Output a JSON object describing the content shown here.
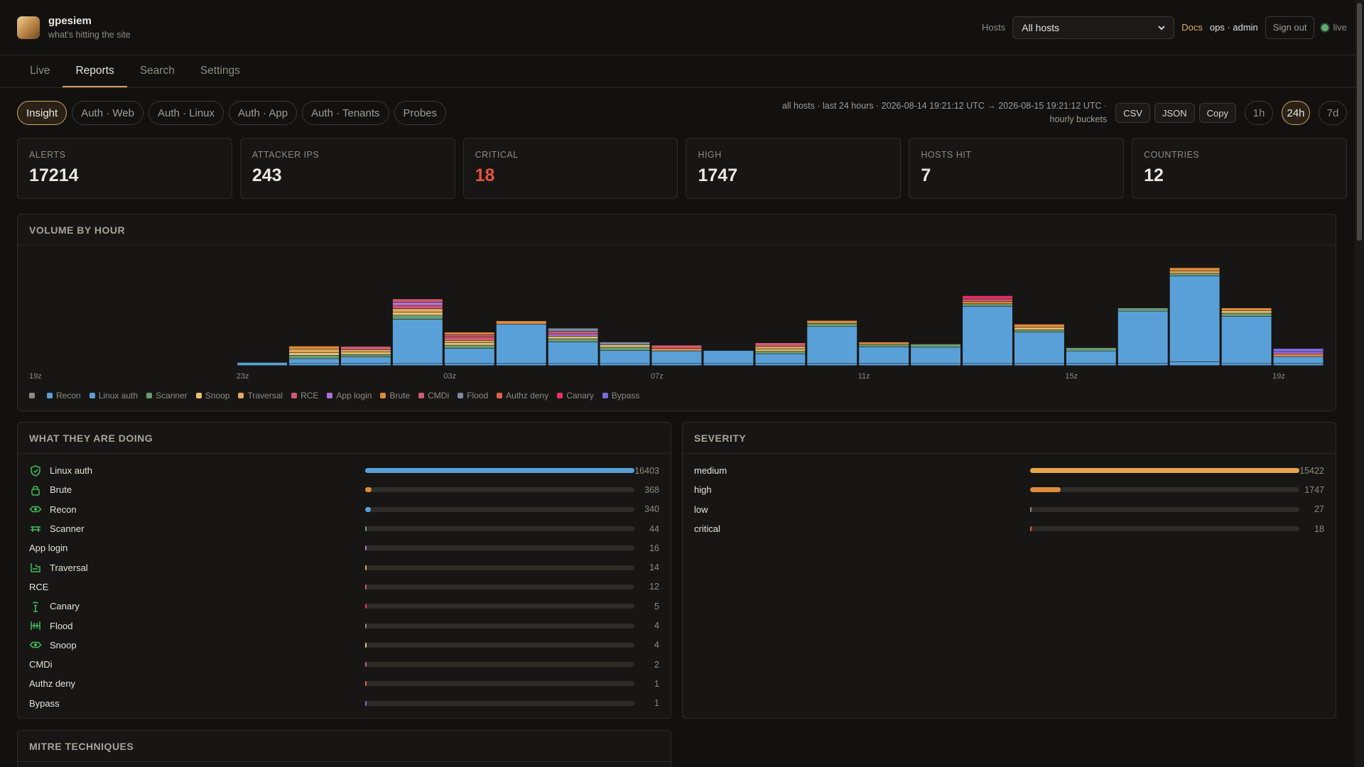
{
  "app": {
    "name": "gpesiem",
    "tagline": "what's hitting the site"
  },
  "header": {
    "hosts_label": "Hosts",
    "hosts_value": "All hosts",
    "docs": "Docs",
    "user": "ops · admin",
    "sign_out": "Sign out",
    "live": "live"
  },
  "tabs": [
    {
      "label": "Live"
    },
    {
      "label": "Reports"
    },
    {
      "label": "Search"
    },
    {
      "label": "Settings"
    }
  ],
  "filters": [
    {
      "label": "Insight"
    },
    {
      "label": "Auth · Web"
    },
    {
      "label": "Auth · Linux"
    },
    {
      "label": "Auth · App"
    },
    {
      "label": "Auth · Tenants"
    },
    {
      "label": "Probes"
    }
  ],
  "range": {
    "line1": "all hosts · last 24 hours · 2026-08-14 19:21:12 UTC → 2026-08-15 19:21:12 UTC ·",
    "line2": "hourly buckets"
  },
  "export": {
    "csv": "CSV",
    "json": "JSON",
    "copy": "Copy"
  },
  "ranges": [
    {
      "label": "1h"
    },
    {
      "label": "24h"
    },
    {
      "label": "7d"
    }
  ],
  "stats": [
    {
      "label": "ALERTS",
      "value": "17214"
    },
    {
      "label": "ATTACKER IPS",
      "value": "243"
    },
    {
      "label": "CRITICAL",
      "value": "18"
    },
    {
      "label": "HIGH",
      "value": "1747"
    },
    {
      "label": "HOSTS HIT",
      "value": "7"
    },
    {
      "label": "COUNTRIES",
      "value": "12"
    }
  ],
  "volume": {
    "title": "VOLUME BY HOUR"
  },
  "colors": {
    "unknown": "#8e8a82",
    "recon": "#5aa0d8",
    "linux_auth": "#5aa0d8",
    "scanner": "#6a9c72",
    "snoop": "#e8c070",
    "traversal": "#e0a860",
    "rce": "#d05a70",
    "app_login": "#b070d8",
    "brute": "#e08a3a",
    "cmdi": "#d05a70",
    "flood": "#7a8aa0",
    "authz_deny": "#e0604a",
    "canary": "#e8306a",
    "bypass": "#7a6ae0"
  },
  "chart_data": {
    "type": "bar",
    "stacked": true,
    "title": "VOLUME BY HOUR",
    "x_tick_labels": [
      "19z",
      "23z",
      "03z",
      "07z",
      "11z",
      "15z",
      "19z"
    ],
    "legend": [
      "",
      "Recon",
      "Linux auth",
      "Scanner",
      "Snoop",
      "Traversal",
      "RCE",
      "App login",
      "Brute",
      "CMDi",
      "Flood",
      "Authz deny",
      "Canary",
      "Bypass"
    ],
    "legend_keys": [
      "unknown",
      "recon",
      "linux_auth",
      "scanner",
      "snoop",
      "traversal",
      "rce",
      "app_login",
      "brute",
      "cmdi",
      "flood",
      "authz_deny",
      "canary",
      "bypass"
    ],
    "ylim": [
      0,
      1400
    ],
    "buckets": [
      {
        "hour": "19z",
        "segments": []
      },
      {
        "hour": "20z",
        "segments": []
      },
      {
        "hour": "21z",
        "segments": []
      },
      {
        "hour": "22z",
        "segments": []
      },
      {
        "hour": "23z",
        "segments": [
          {
            "key": "linux_auth",
            "v": 38
          }
        ]
      },
      {
        "hour": "00z",
        "segments": [
          {
            "key": "recon",
            "v": 25
          },
          {
            "key": "linux_auth",
            "v": 60
          },
          {
            "key": "scanner",
            "v": 40
          },
          {
            "key": "snoop",
            "v": 35
          },
          {
            "key": "traversal",
            "v": 40
          },
          {
            "key": "brute",
            "v": 40
          }
        ]
      },
      {
        "hour": "01z",
        "segments": [
          {
            "key": "recon",
            "v": 25
          },
          {
            "key": "linux_auth",
            "v": 80
          },
          {
            "key": "scanner",
            "v": 30
          },
          {
            "key": "snoop",
            "v": 30
          },
          {
            "key": "traversal",
            "v": 30
          },
          {
            "key": "rce",
            "v": 40
          }
        ]
      },
      {
        "hour": "02z",
        "segments": [
          {
            "key": "recon",
            "v": 25
          },
          {
            "key": "linux_auth",
            "v": 545
          },
          {
            "key": "scanner",
            "v": 50
          },
          {
            "key": "snoop",
            "v": 40
          },
          {
            "key": "traversal",
            "v": 40
          },
          {
            "key": "rce",
            "v": 40
          },
          {
            "key": "app_login",
            "v": 40
          },
          {
            "key": "cmdi",
            "v": 40
          }
        ]
      },
      {
        "hour": "03z",
        "segments": [
          {
            "key": "recon",
            "v": 25
          },
          {
            "key": "linux_auth",
            "v": 185
          },
          {
            "key": "scanner",
            "v": 40
          },
          {
            "key": "snoop",
            "v": 30
          },
          {
            "key": "traversal",
            "v": 30
          },
          {
            "key": "rce",
            "v": 40
          },
          {
            "key": "cmdi",
            "v": 30
          },
          {
            "key": "brute",
            "v": 30
          }
        ]
      },
      {
        "hour": "04z",
        "segments": [
          {
            "key": "recon",
            "v": 25
          },
          {
            "key": "linux_auth",
            "v": 485
          },
          {
            "key": "brute",
            "v": 40
          }
        ]
      },
      {
        "hour": "05z",
        "segments": [
          {
            "key": "recon",
            "v": 25
          },
          {
            "key": "linux_auth",
            "v": 265
          },
          {
            "key": "scanner",
            "v": 40
          },
          {
            "key": "snoop",
            "v": 30
          },
          {
            "key": "app_login",
            "v": 30
          },
          {
            "key": "rce",
            "v": 30
          },
          {
            "key": "flood",
            "v": 40
          }
        ]
      },
      {
        "hour": "06z",
        "segments": [
          {
            "key": "recon",
            "v": 25
          },
          {
            "key": "linux_auth",
            "v": 160
          },
          {
            "key": "scanner",
            "v": 40
          },
          {
            "key": "snoop",
            "v": 30
          },
          {
            "key": "flood",
            "v": 35
          }
        ]
      },
      {
        "hour": "07z",
        "segments": [
          {
            "key": "recon",
            "v": 25
          },
          {
            "key": "linux_auth",
            "v": 155
          },
          {
            "key": "brute",
            "v": 30
          },
          {
            "key": "rce",
            "v": 40
          }
        ]
      },
      {
        "hour": "08z",
        "segments": [
          {
            "key": "recon",
            "v": 25
          },
          {
            "key": "linux_auth",
            "v": 160
          }
        ]
      },
      {
        "hour": "09z",
        "segments": [
          {
            "key": "recon",
            "v": 25
          },
          {
            "key": "linux_auth",
            "v": 120
          },
          {
            "key": "scanner",
            "v": 30
          },
          {
            "key": "snoop",
            "v": 30
          },
          {
            "key": "traversal",
            "v": 30
          },
          {
            "key": "rce",
            "v": 45
          }
        ]
      },
      {
        "hour": "10z",
        "segments": [
          {
            "key": "recon",
            "v": 25
          },
          {
            "key": "linux_auth",
            "v": 455
          },
          {
            "key": "scanner",
            "v": 40
          },
          {
            "key": "brute",
            "v": 35
          }
        ]
      },
      {
        "hour": "11z",
        "segments": [
          {
            "key": "recon",
            "v": 25
          },
          {
            "key": "linux_auth",
            "v": 205
          },
          {
            "key": "scanner",
            "v": 30
          },
          {
            "key": "brute",
            "v": 30
          }
        ]
      },
      {
        "hour": "12z",
        "segments": [
          {
            "key": "recon",
            "v": 25
          },
          {
            "key": "linux_auth",
            "v": 200
          },
          {
            "key": "scanner",
            "v": 40
          }
        ]
      },
      {
        "hour": "13z",
        "segments": [
          {
            "key": "recon",
            "v": 25
          },
          {
            "key": "linux_auth",
            "v": 705
          },
          {
            "key": "scanner",
            "v": 30
          },
          {
            "key": "brute",
            "v": 30
          },
          {
            "key": "rce",
            "v": 30
          },
          {
            "key": "canary",
            "v": 40
          }
        ]
      },
      {
        "hour": "14z",
        "segments": [
          {
            "key": "recon",
            "v": 25
          },
          {
            "key": "linux_auth",
            "v": 385
          },
          {
            "key": "scanner",
            "v": 30
          },
          {
            "key": "snoop",
            "v": 30
          },
          {
            "key": "brute",
            "v": 40
          }
        ]
      },
      {
        "hour": "15z",
        "segments": [
          {
            "key": "recon",
            "v": 25
          },
          {
            "key": "linux_auth",
            "v": 155
          },
          {
            "key": "scanner",
            "v": 40
          }
        ]
      },
      {
        "hour": "16z",
        "segments": [
          {
            "key": "recon",
            "v": 25
          },
          {
            "key": "linux_auth",
            "v": 645
          },
          {
            "key": "scanner",
            "v": 40
          }
        ]
      },
      {
        "hour": "17z",
        "segments": [
          {
            "key": "recon",
            "v": 45
          },
          {
            "key": "linux_auth",
            "v": 1060
          },
          {
            "key": "scanner",
            "v": 30
          },
          {
            "key": "traversal",
            "v": 30
          },
          {
            "key": "brute",
            "v": 40
          }
        ]
      },
      {
        "hour": "18z",
        "segments": [
          {
            "key": "recon",
            "v": 25
          },
          {
            "key": "linux_auth",
            "v": 580
          },
          {
            "key": "scanner",
            "v": 40
          },
          {
            "key": "snoop",
            "v": 30
          },
          {
            "key": "brute",
            "v": 35
          }
        ]
      },
      {
        "hour": "19z",
        "segments": [
          {
            "key": "recon",
            "v": 25
          },
          {
            "key": "linux_auth",
            "v": 85
          },
          {
            "key": "brute",
            "v": 30
          },
          {
            "key": "app_login",
            "v": 30
          },
          {
            "key": "bypass",
            "v": 40
          }
        ]
      }
    ]
  },
  "doing": {
    "title": "WHAT THEY ARE DOING",
    "max": 16403,
    "rows": [
      {
        "label": "Linux auth",
        "count": 16403,
        "icon": "shield-icon",
        "color": "#5aa0d8"
      },
      {
        "label": "Brute",
        "count": 368,
        "icon": "lock-icon",
        "color": "#e08a3a"
      },
      {
        "label": "Recon",
        "count": 340,
        "icon": "eye-icon",
        "color": "#5aa0d8"
      },
      {
        "label": "Scanner",
        "count": 44,
        "icon": "radar-icon",
        "color": "#6a9c72"
      },
      {
        "label": "App login",
        "count": 16,
        "icon": "",
        "color": "#b070d8"
      },
      {
        "label": "Traversal",
        "count": 14,
        "icon": "folder-icon",
        "color": "#e0a860"
      },
      {
        "label": "RCE",
        "count": 12,
        "icon": "",
        "color": "#d05a70"
      },
      {
        "label": "Canary",
        "count": 5,
        "icon": "antenna-icon",
        "color": "#e8306a"
      },
      {
        "label": "Flood",
        "count": 4,
        "icon": "wave-icon",
        "color": "#7a8aa0"
      },
      {
        "label": "Snoop",
        "count": 4,
        "icon": "eye-icon",
        "color": "#e8c070"
      },
      {
        "label": "CMDi",
        "count": 2,
        "icon": "",
        "color": "#d05a70"
      },
      {
        "label": "Authz deny",
        "count": 1,
        "icon": "",
        "color": "#e0604a"
      },
      {
        "label": "Bypass",
        "count": 1,
        "icon": "",
        "color": "#7a6ae0"
      }
    ]
  },
  "severity": {
    "title": "SEVERITY",
    "max": 15422,
    "rows": [
      {
        "label": "medium",
        "count": 15422,
        "color": "#e6a44a"
      },
      {
        "label": "high",
        "count": 1747,
        "color": "#e08a3a"
      },
      {
        "label": "low",
        "count": 27,
        "color": "#8e8a82"
      },
      {
        "label": "critical",
        "count": 18,
        "color": "#e5533d"
      }
    ]
  },
  "mitre": {
    "title": "MITRE TECHNIQUES"
  }
}
